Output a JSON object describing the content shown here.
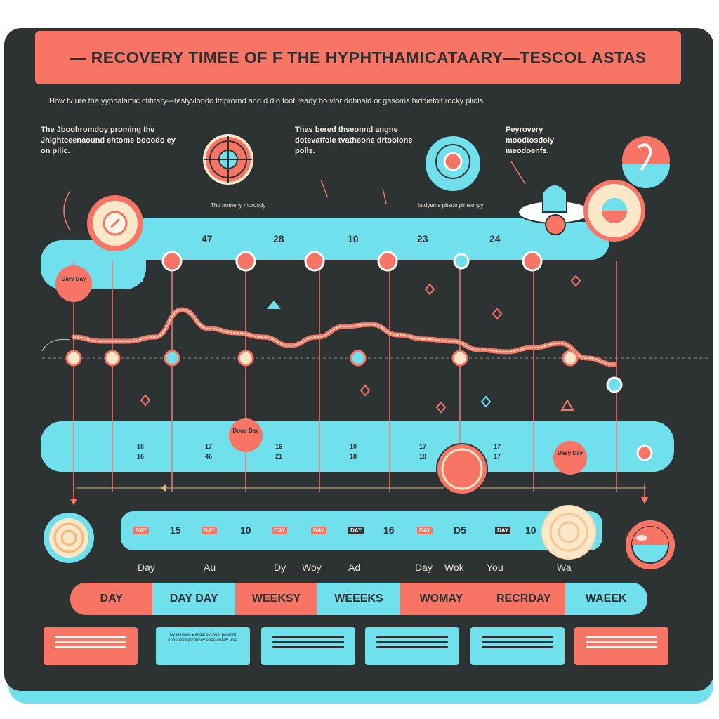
{
  "title": "— RECOVERY TIMEE OF F THE HYPHTHAMICATAARY—TESCOL ASTAS",
  "subtitle": "How tv ure the yyphalamic ctitirary—testyvlondo ltdprornd and d dio foot ready ho vlor dohnald or gasoms hiddiefolt rocky pliols.",
  "notes": [
    "The Jboohromdoy proming the Jhightceenaound ehtome booodo ey on pilic.",
    "Thas bered thseonnd angne dotevatfole tvatheone drtoolone polls.",
    "Peyrovery moodtosdoly meodoenfs."
  ],
  "captions": [
    "Tho tromeny moroody",
    "Iutdyems pbsoo plnrsonpy"
  ],
  "top_values": [
    "47",
    "28",
    "10",
    "23",
    "24"
  ],
  "mid_values": [
    [
      "18",
      "16"
    ],
    [
      "17",
      "46"
    ],
    [
      "16",
      "21"
    ],
    [
      "10",
      "18"
    ],
    [
      "17",
      "18"
    ],
    [
      "17",
      "17"
    ]
  ],
  "badges": {
    "left": "Dary Day",
    "mid": "Doop Day",
    "right": "Dasy Day"
  },
  "bottom_row": [
    "DAY",
    "15",
    "DAY",
    "10",
    "DAY",
    "DAY",
    "DAY",
    "16",
    "DAY",
    "D5",
    "DAY",
    "10"
  ],
  "day_words": [
    "Day",
    "Au",
    "Dy",
    "Woy",
    "Ad",
    "Day",
    "Wok",
    "You",
    "Wa"
  ],
  "tabs": [
    "DAY",
    "DAY DAY",
    "WEEKSY",
    "WEEEKS",
    "WOMAY",
    "RECRDAY",
    "WAEEK"
  ],
  "cards": [
    "",
    "Dy Dooson Bonocl ovsbool poarent onnooobd gol Innoy ohocurreoly pilic.",
    "",
    "",
    "",
    ""
  ],
  "colors": {
    "panel": "#2d3233",
    "coral": "#f87565",
    "cyan": "#6fe0ec",
    "cream": "#fbe8c8"
  },
  "chart_data": {
    "type": "line",
    "series": [
      {
        "name": "recovery",
        "x": [
          0,
          1,
          2,
          3,
          4,
          5,
          6,
          7,
          8,
          9,
          10,
          11,
          12,
          13,
          14,
          15,
          16,
          17,
          18,
          19,
          20
        ],
        "y": [
          4,
          3.6,
          3.6,
          4,
          6.6,
          4.8,
          4.4,
          4,
          3.2,
          4,
          5,
          5.2,
          4.2,
          3.8,
          3.6,
          2.8,
          2.6,
          3,
          3.4,
          2,
          1.4
        ]
      }
    ],
    "markers_x": [
      2,
      6,
      9,
      12,
      15,
      18,
      20
    ]
  }
}
